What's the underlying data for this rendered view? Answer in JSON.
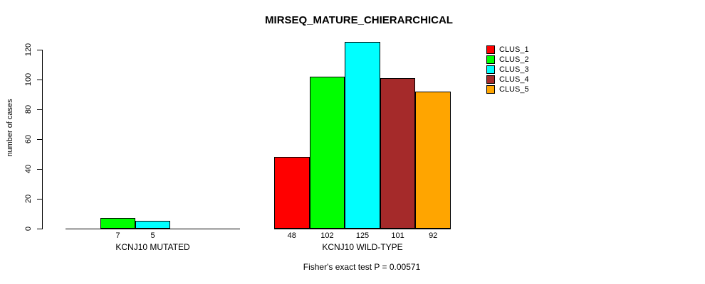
{
  "chart_data": {
    "type": "bar",
    "title": "MIRSEQ_MATURE_CHIERARCHICAL",
    "ylabel": "number of cases",
    "footer": "Fisher's exact test P = 0.00571",
    "yticks": [
      0,
      20,
      40,
      60,
      80,
      100,
      120
    ],
    "ylim": [
      0,
      126
    ],
    "grid": false,
    "legend_position": "top-right",
    "series_names": [
      "CLUS_1",
      "CLUS_2",
      "CLUS_3",
      "CLUS_4",
      "CLUS_5"
    ],
    "colors": [
      "#ff0000",
      "#00ff00",
      "#00ffff",
      "#a52a2a",
      "#ffa500"
    ],
    "groups": [
      {
        "label": "KCNJ10 MUTATED",
        "values": [
          0,
          7,
          5,
          0,
          0
        ]
      },
      {
        "label": "KCNJ10 WILD-TYPE",
        "values": [
          48,
          102,
          125,
          101,
          92
        ]
      }
    ]
  }
}
